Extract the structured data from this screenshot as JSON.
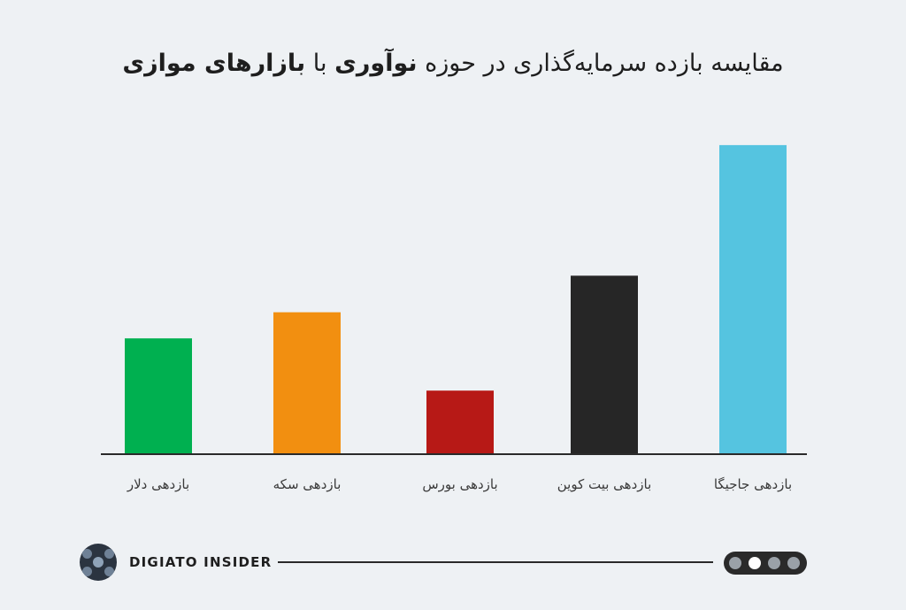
{
  "title": {
    "part1": "مقایسه بازده سرمایه‌گذاری در حوزه",
    "bold1": "نوآوری",
    "part2": "با",
    "bold2": "بازارهای موازی"
  },
  "chart_data": {
    "type": "bar",
    "categories": [
      "بازدهی دلار",
      "بازدهی سکه",
      "بازدهی بورس",
      "بازدهی بیت کوین",
      "بازدهی جاجیگا"
    ],
    "values": [
      132,
      162,
      72,
      204,
      354
    ],
    "colors": [
      "#00b050",
      "#f28f10",
      "#b71916",
      "#262626",
      "#55c4e0"
    ],
    "ylim": [
      0,
      360
    ],
    "grid": false,
    "xlabel": "",
    "ylabel": ""
  },
  "footer": {
    "brand": "DIGIATO INSIDER",
    "pager": {
      "count": 4,
      "active_index": 1
    }
  }
}
